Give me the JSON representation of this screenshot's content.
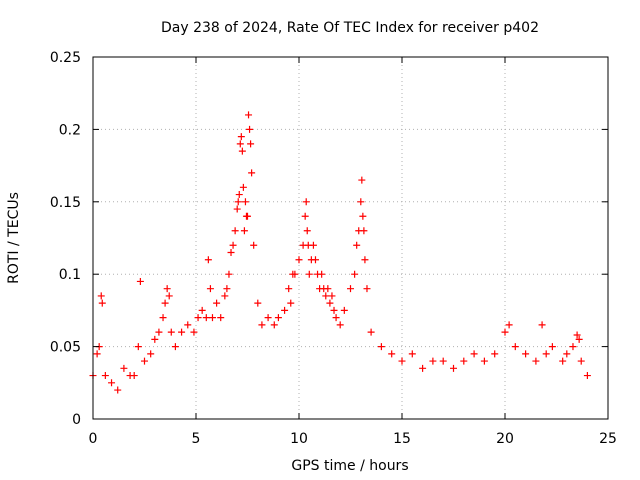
{
  "chart_data": {
    "type": "scatter",
    "title": "Day 238 of 2024, Rate Of TEC Index for receiver p402",
    "xlabel": "GPS time / hours",
    "ylabel": "ROTI / TECUs",
    "xlim": [
      0,
      25
    ],
    "ylim": [
      0,
      0.25
    ],
    "xticks": [
      "0",
      "5",
      "10",
      "15",
      "20",
      "25"
    ],
    "yticks": [
      "0",
      "0.05",
      "0.1",
      "0.15",
      "0.2",
      "0.25"
    ],
    "grid": true,
    "legend": "none",
    "marker": "+",
    "colors": {
      "series": "#ff0000",
      "grid": "#b0b0b0",
      "axis": "#000000"
    },
    "series": [
      {
        "x": [
          0.0,
          0.2,
          0.3,
          0.4,
          0.45,
          0.6,
          0.9,
          1.2,
          1.5,
          1.8,
          2.0,
          2.2,
          2.3,
          2.5,
          2.8,
          3.0,
          3.2,
          3.4,
          3.5,
          3.6,
          3.7,
          3.8,
          4.0,
          4.3,
          4.6,
          4.9,
          5.1,
          5.3,
          5.5,
          5.6,
          5.7,
          5.8,
          6.0,
          6.2,
          6.4,
          6.5,
          6.6,
          6.7,
          6.8,
          6.9,
          7.0,
          7.05,
          7.1,
          7.15,
          7.2,
          7.25,
          7.3,
          7.35,
          7.4,
          7.45,
          7.5,
          7.55,
          7.6,
          7.65,
          7.7,
          7.8,
          8.0,
          8.2,
          8.5,
          8.8,
          9.0,
          9.3,
          9.5,
          9.6,
          9.7,
          9.8,
          10.0,
          10.2,
          10.3,
          10.35,
          10.4,
          10.45,
          10.5,
          10.6,
          10.7,
          10.8,
          10.9,
          11.0,
          11.1,
          11.2,
          11.3,
          11.4,
          11.5,
          11.6,
          11.7,
          11.8,
          12.0,
          12.2,
          12.5,
          12.7,
          12.8,
          12.9,
          13.0,
          13.05,
          13.1,
          13.15,
          13.2,
          13.3,
          13.5,
          14.0,
          14.5,
          15.0,
          15.5,
          16.0,
          16.5,
          17.0,
          17.5,
          18.0,
          18.5,
          19.0,
          19.5,
          20.0,
          20.2,
          20.5,
          21.0,
          21.5,
          21.8,
          22.0,
          22.3,
          22.8,
          23.0,
          23.3,
          23.5,
          23.6,
          23.7,
          24.0
        ],
        "y": [
          0.03,
          0.045,
          0.05,
          0.085,
          0.08,
          0.03,
          0.025,
          0.02,
          0.035,
          0.03,
          0.03,
          0.05,
          0.095,
          0.04,
          0.045,
          0.055,
          0.06,
          0.07,
          0.08,
          0.09,
          0.085,
          0.06,
          0.05,
          0.06,
          0.065,
          0.06,
          0.07,
          0.075,
          0.07,
          0.11,
          0.09,
          0.07,
          0.08,
          0.07,
          0.085,
          0.09,
          0.1,
          0.115,
          0.12,
          0.13,
          0.145,
          0.15,
          0.155,
          0.19,
          0.195,
          0.185,
          0.16,
          0.13,
          0.15,
          0.14,
          0.14,
          0.21,
          0.2,
          0.19,
          0.17,
          0.12,
          0.08,
          0.065,
          0.07,
          0.065,
          0.07,
          0.075,
          0.09,
          0.08,
          0.1,
          0.1,
          0.11,
          0.12,
          0.14,
          0.15,
          0.13,
          0.12,
          0.1,
          0.11,
          0.12,
          0.11,
          0.1,
          0.09,
          0.1,
          0.09,
          0.085,
          0.09,
          0.08,
          0.085,
          0.075,
          0.07,
          0.065,
          0.075,
          0.09,
          0.1,
          0.12,
          0.13,
          0.15,
          0.165,
          0.14,
          0.13,
          0.11,
          0.09,
          0.06,
          0.05,
          0.045,
          0.04,
          0.045,
          0.035,
          0.04,
          0.04,
          0.035,
          0.04,
          0.045,
          0.04,
          0.045,
          0.06,
          0.065,
          0.05,
          0.045,
          0.04,
          0.065,
          0.045,
          0.05,
          0.04,
          0.045,
          0.05,
          0.058,
          0.055,
          0.04,
          0.03
        ]
      }
    ]
  }
}
